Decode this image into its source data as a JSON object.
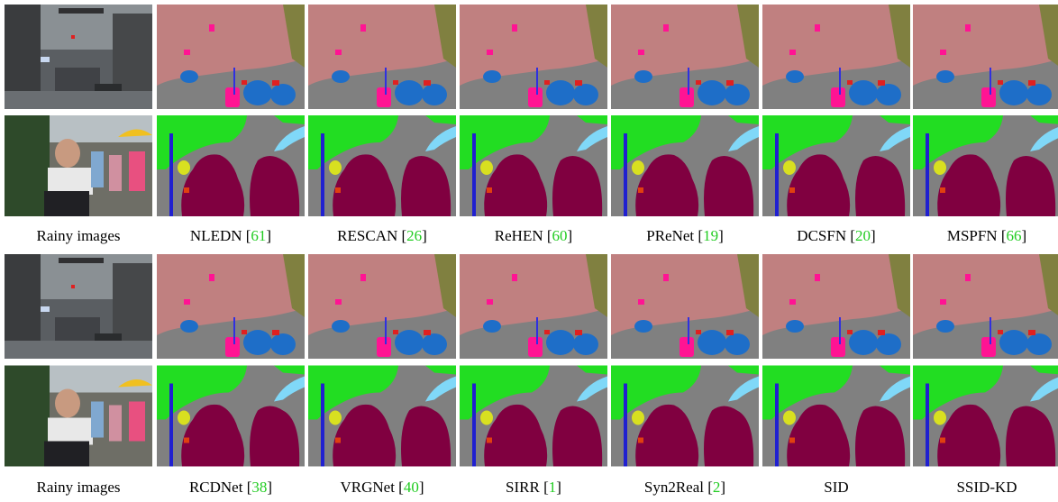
{
  "captions": [
    [
      [
        "Rainy images"
      ],
      [
        "NLEDN [",
        "61",
        "]"
      ],
      [
        "RESCAN [",
        "26",
        "]"
      ],
      [
        "ReHEN [",
        "60",
        "]"
      ],
      [
        "PReNet [",
        "19",
        "]"
      ],
      [
        "DCSFN [",
        "20",
        "]"
      ],
      [
        "MSPFN [",
        "66",
        "]"
      ]
    ],
    [
      [
        "Rainy images"
      ],
      [
        "RCDNet [",
        "38",
        "]"
      ],
      [
        "VRGNet [",
        "40",
        "]"
      ],
      [
        "SIRR [",
        "1",
        "]"
      ],
      [
        "Syn2Real [",
        "2",
        "]"
      ],
      [
        "SID"
      ],
      [
        "SSID-KD"
      ]
    ]
  ]
}
